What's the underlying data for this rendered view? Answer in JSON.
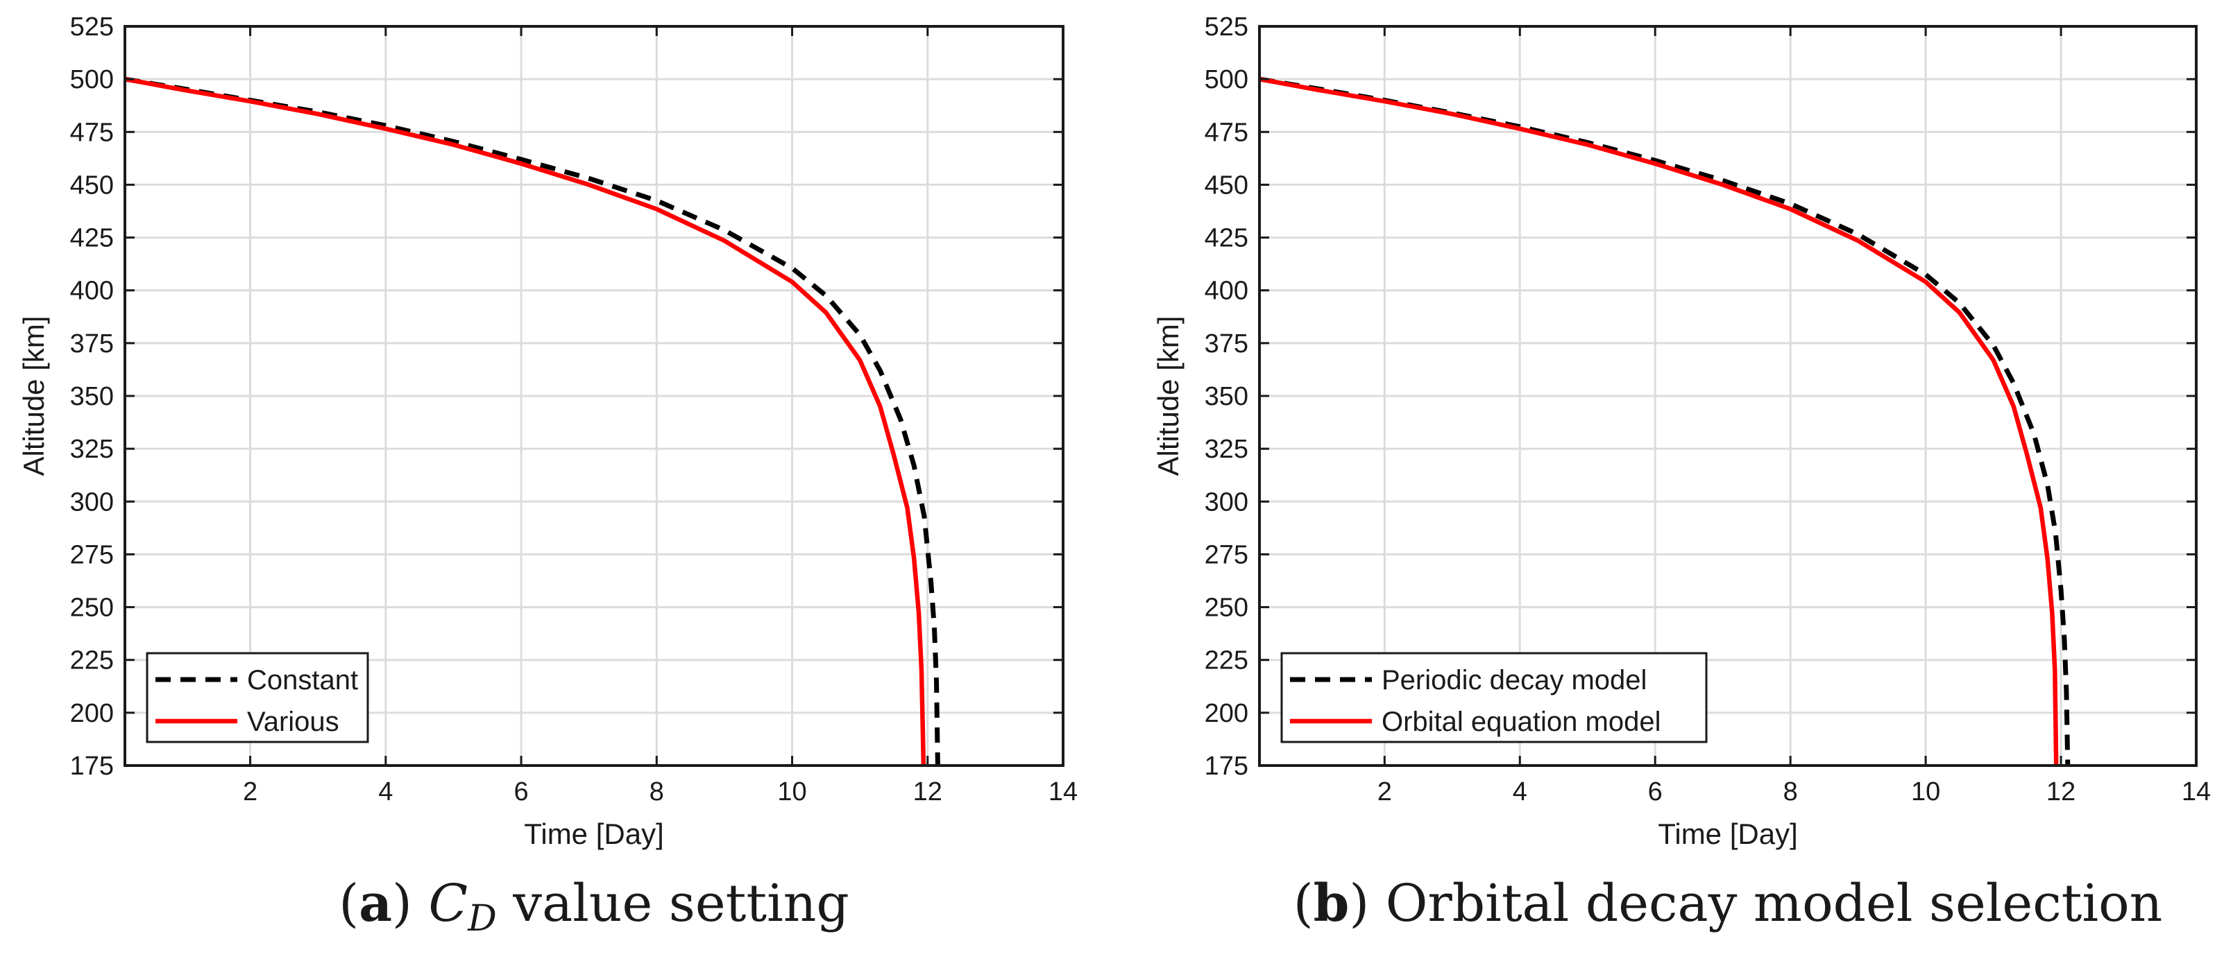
{
  "chart_data": [
    {
      "type": "line",
      "panel_letter": "a",
      "caption_text": "C",
      "caption_subscript": "D",
      "caption_rest": " value setting",
      "xlabel": "Time [Day]",
      "ylabel": "Altitude [km]",
      "xlim": [
        0.15,
        14
      ],
      "ylim": [
        175,
        525
      ],
      "xticks": [
        2,
        4,
        6,
        8,
        10,
        12,
        14
      ],
      "yticks": [
        175,
        200,
        225,
        250,
        275,
        300,
        325,
        350,
        375,
        400,
        425,
        450,
        475,
        500,
        525
      ],
      "grid": true,
      "legend_position": "bottom-left",
      "series": [
        {
          "name": "Constant",
          "color": "#000000",
          "style": "dashed",
          "x": [
            0.15,
            1,
            2,
            3,
            4,
            5,
            6,
            7,
            8,
            9,
            10,
            10.5,
            11,
            11.3,
            11.6,
            11.8,
            11.95,
            12.05,
            12.1,
            12.13,
            12.15
          ],
          "y": [
            500,
            495.5,
            490,
            484.5,
            478,
            470.5,
            462,
            453,
            442.5,
            428.5,
            410.5,
            397.5,
            379,
            362,
            339,
            317,
            293,
            262,
            240,
            215,
            175
          ]
        },
        {
          "name": "Various",
          "color": "#ff0000",
          "style": "solid",
          "x": [
            0.15,
            1,
            2,
            3,
            4,
            5,
            6,
            7,
            8,
            9,
            10,
            10.5,
            11,
            11.3,
            11.5,
            11.7,
            11.8,
            11.87,
            11.91,
            11.94
          ],
          "y": [
            500,
            495,
            489.5,
            483.5,
            476.5,
            469,
            460,
            450,
            438.5,
            423.5,
            404,
            389.5,
            367,
            345,
            322,
            297,
            273,
            247,
            220,
            175
          ]
        }
      ]
    },
    {
      "type": "line",
      "panel_letter": "b",
      "caption_text": "Orbital decay model selection",
      "caption_subscript": "",
      "caption_rest": "",
      "xlabel": "Time [Day]",
      "ylabel": "Altitude [km]",
      "xlim": [
        0.15,
        14
      ],
      "ylim": [
        175,
        525
      ],
      "xticks": [
        2,
        4,
        6,
        8,
        10,
        12,
        14
      ],
      "yticks": [
        175,
        200,
        225,
        250,
        275,
        300,
        325,
        350,
        375,
        400,
        425,
        450,
        475,
        500,
        525
      ],
      "grid": true,
      "legend_position": "bottom-left",
      "series": [
        {
          "name": "Periodic decay model",
          "color": "#000000",
          "style": "dashed",
          "x": [
            0.15,
            1,
            2,
            3,
            4,
            5,
            6,
            7,
            8,
            9,
            10,
            10.5,
            11,
            11.3,
            11.6,
            11.8,
            11.92,
            12.0,
            12.05,
            12.08,
            12.1
          ],
          "y": [
            500,
            495.5,
            490,
            484,
            477.5,
            470,
            461.5,
            452,
            441,
            426.5,
            407.5,
            394,
            374,
            356,
            332,
            308,
            285,
            258,
            235,
            210,
            175
          ]
        },
        {
          "name": "Orbital equation model",
          "color": "#ff0000",
          "style": "solid",
          "x": [
            0.15,
            1,
            2,
            3,
            4,
            5,
            6,
            7,
            8,
            9,
            10,
            10.5,
            11,
            11.3,
            11.5,
            11.7,
            11.8,
            11.87,
            11.91,
            11.93
          ],
          "y": [
            500,
            495,
            489.5,
            483.5,
            476.5,
            469,
            460,
            450,
            438.5,
            423.5,
            404,
            389.5,
            367,
            345,
            322,
            297,
            273,
            247,
            220,
            175
          ]
        }
      ]
    }
  ]
}
